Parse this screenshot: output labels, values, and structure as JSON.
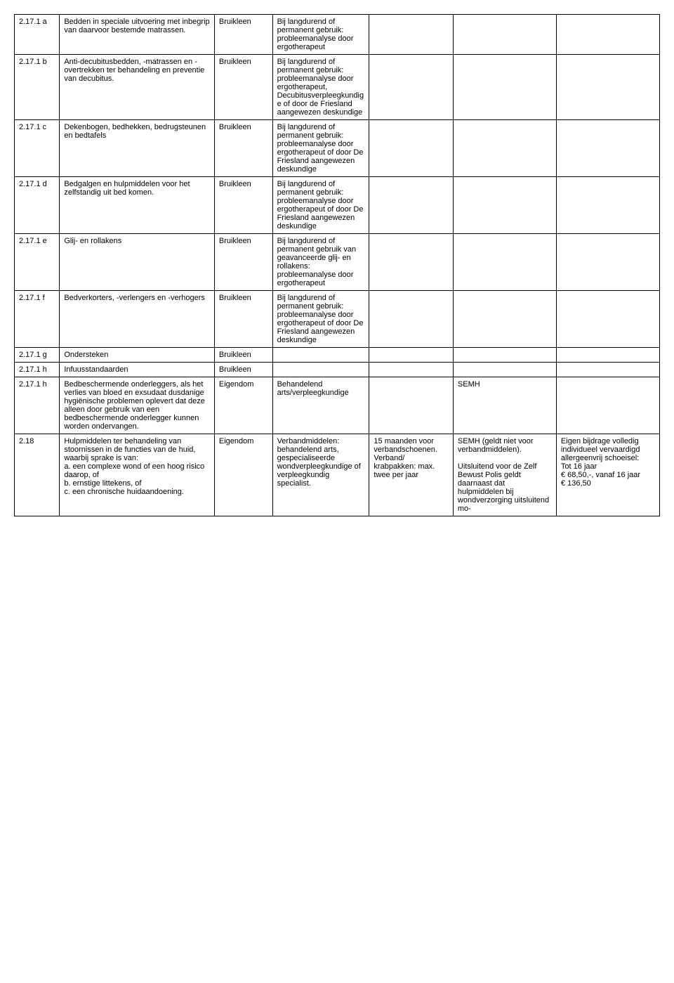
{
  "table": {
    "rows": [
      {
        "code": "2.17.1 a",
        "desc": "Bedden in speciale uitvoering met inbegrip van daarvoor bestemde matrassen.",
        "type": "Bruikleen",
        "cond": "Bij langdurend of permanent gebruik: probleemanalyse door ergotherapeut",
        "period": "",
        "semh": "",
        "cost": ""
      },
      {
        "code": "2.17.1 b",
        "desc": "Anti-decubitusbedden, -matrassen en -overtrekken ter behandeling en preventie van decubitus.",
        "type": "Bruikleen",
        "cond": "Bij langdurend of permanent gebruik: probleemanalyse door ergotherapeut, Decubitusverpleegkundige of door de Friesland aangewezen deskundige",
        "period": "",
        "semh": "",
        "cost": ""
      },
      {
        "code": "2.17.1 c",
        "desc": "Dekenbogen, bedhekken, bedrugsteunen en bedtafels",
        "type": "Bruikleen",
        "cond": "Bij langdurend of permanent gebruik: probleemanalyse door ergotherapeut of door De Friesland aangewezen deskundige",
        "period": "",
        "semh": "",
        "cost": ""
      },
      {
        "code": "2.17.1 d",
        "desc": "Bedgalgen en hulpmiddelen voor het zelfstandig uit bed komen.",
        "type": "Bruikleen",
        "cond": "Bij langdurend of permanent gebruik: probleemanalyse door ergotherapeut of door De Friesland aangewezen deskundige",
        "period": "",
        "semh": "",
        "cost": ""
      },
      {
        "code": "2.17.1 e",
        "desc": "Glij- en rollakens",
        "type": "Bruikleen",
        "cond": "Bij langdurend of permanent gebruik van geavanceerde glij- en rollakens: probleemanalyse door ergotherapeut",
        "period": "",
        "semh": "",
        "cost": ""
      },
      {
        "code": "2.17.1 f",
        "desc": "Bedverkorters, -verlengers en -verhogers",
        "type": "Bruikleen",
        "cond": "Bij langdurend of permanent gebruik: probleemanalyse door ergotherapeut of door De Friesland aangewezen deskundige",
        "period": "",
        "semh": "",
        "cost": ""
      },
      {
        "code": "2.17.1 g",
        "desc": "Ondersteken",
        "type": "Bruikleen",
        "cond": "",
        "period": "",
        "semh": "",
        "cost": ""
      },
      {
        "code": "2.17.1 h",
        "desc": "Infuusstandaarden",
        "type": "Bruikleen",
        "cond": "",
        "period": "",
        "semh": "",
        "cost": ""
      },
      {
        "code": "2.17.1 h",
        "desc": "Bedbeschermende onderleggers, als het verlies van bloed en exsudaat dusdanige hygiënische problemen oplevert dat deze alleen door gebruik van een bedbeschermende onderlegger kunnen worden ondervangen.",
        "type": "Eigendom",
        "cond": "Behandelend arts/verpleegkundige",
        "period": "",
        "semh": "SEMH",
        "cost": ""
      },
      {
        "code": "2.18",
        "desc": "Hulpmiddelen ter behandeling van stoornissen in de functies van de huid, waarbij sprake is van:\na. een complexe wond of een hoog risico daarop, of\nb. ernstige littekens, of\nc. een chronische huidaandoening.",
        "type": "Eigendom",
        "cond": "Verbandmiddelen: behandelend arts, gespecialiseerde wondverpleegkundige of verpleegkundig specialist.",
        "period": "15 maanden voor verbandschoenen. Verband/ krabpakken: max. twee per jaar",
        "semh": "SEMH (geldt niet voor verbandmiddelen).\n\nUitsluitend voor de Zelf Bewust Polis geldt daarnaast dat hulpmiddelen bij wondverzorging uitsluitend mo-",
        "cost": "Eigen bijdrage volledig individueel vervaardigd allergeenvrij schoeisel:\nTot 16 jaar\n€ 68,50,-, vanaf 16 jaar\n€ 136,50"
      }
    ]
  }
}
